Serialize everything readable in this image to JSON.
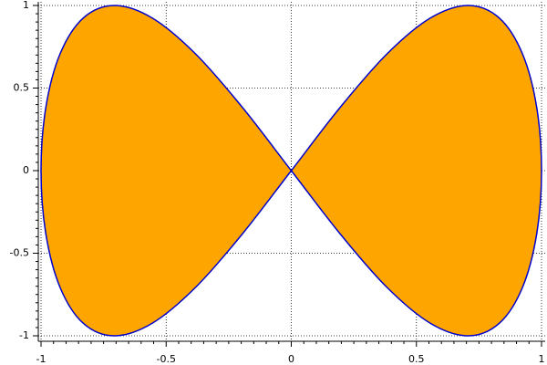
{
  "chart_data": {
    "type": "area",
    "series": [
      {
        "fill": "#ffa500",
        "color": "#0000cc",
        "x": [
          0,
          0.1951,
          0.3827,
          0.5556,
          0.7071,
          0.8315,
          0.9239,
          0.9808,
          1,
          0.9808,
          0.9239,
          0.8315,
          0.7071,
          0.5556,
          0.3827,
          0.1951,
          0,
          -0.1951,
          -0.3827,
          -0.5556,
          -0.7071,
          -0.8315,
          -0.9239,
          -0.9808,
          -1,
          -0.9808,
          -0.9239,
          -0.8315,
          -0.7071,
          -0.5556,
          -0.3827,
          -0.1951,
          0
        ],
        "values": [
          0,
          0.3827,
          0.7071,
          0.9239,
          1,
          0.9239,
          0.7071,
          0.3827,
          0,
          -0.3827,
          -0.7071,
          -0.9239,
          -1,
          -0.9239,
          -0.7071,
          -0.3827,
          0,
          0.3827,
          0.7071,
          0.9239,
          1,
          0.9239,
          0.7071,
          0.3827,
          0,
          -0.3827,
          -0.7071,
          -0.9239,
          -1,
          -0.9239,
          -0.7071,
          -0.3827,
          0
        ]
      }
    ],
    "xlim": [
      -1,
      1
    ],
    "ylim": [
      -1,
      1
    ],
    "xticks": [
      -1,
      -0.5,
      0,
      0.5,
      1
    ],
    "yticks": [
      -1,
      -0.5,
      0,
      0.5,
      1
    ],
    "grid": true
  }
}
